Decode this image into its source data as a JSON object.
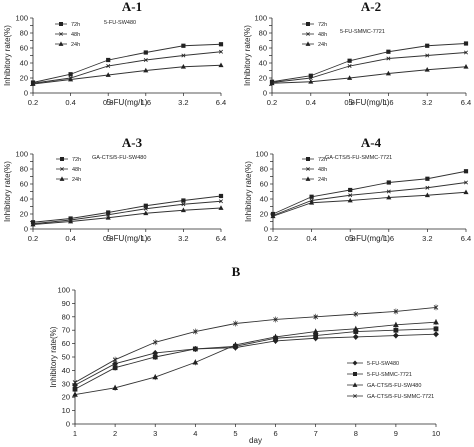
{
  "chart_data": [
    {
      "type": "line",
      "panel": "A-1",
      "annotation": "5-FU-SW480",
      "xlabel": "5-FU(mg/L)",
      "ylabel": "Inhibitory rate(%)",
      "categories": [
        "0.2",
        "0.4",
        "0.8",
        "1.6",
        "3.2",
        "6.4"
      ],
      "ylim": [
        0,
        100
      ],
      "yticks": [
        0,
        10,
        20,
        30,
        40,
        50,
        60,
        70,
        80,
        90,
        100
      ],
      "legend": "top-left",
      "series": [
        {
          "name": "72h",
          "marker": "square",
          "values": [
            14,
            25,
            44,
            54,
            63,
            65
          ]
        },
        {
          "name": "48h",
          "marker": "cross",
          "values": [
            13,
            20,
            36,
            44,
            50,
            55
          ]
        },
        {
          "name": "24h",
          "marker": "triangle",
          "values": [
            12,
            18,
            24,
            30,
            35,
            37
          ]
        }
      ]
    },
    {
      "type": "line",
      "panel": "A-2",
      "annotation": "5-FU-SMMC-7721",
      "xlabel": "5-FU(mg/L)",
      "ylabel": "Inhibitory rate(%)",
      "categories": [
        "0.2",
        "0.4",
        "0.8",
        "1.6",
        "3.2",
        "6.4"
      ],
      "ylim": [
        0,
        100
      ],
      "yticks": [
        0,
        10,
        20,
        30,
        40,
        50,
        60,
        70,
        80,
        90,
        100
      ],
      "legend": "top-left",
      "series": [
        {
          "name": "72h",
          "marker": "square",
          "values": [
            15,
            23,
            43,
            55,
            63,
            66
          ]
        },
        {
          "name": "48h",
          "marker": "cross",
          "values": [
            14,
            20,
            36,
            46,
            50,
            54
          ]
        },
        {
          "name": "24h",
          "marker": "triangle",
          "values": [
            13,
            15,
            20,
            26,
            31,
            35
          ]
        }
      ]
    },
    {
      "type": "line",
      "panel": "A-3",
      "annotation": "GA-CTS/5-FU-SW480",
      "xlabel": "5-FU(mg/L)",
      "ylabel": "Inhibitory rate(%)",
      "categories": [
        "0.2",
        "0.4",
        "0.8",
        "1.6",
        "3.2",
        "6.4"
      ],
      "ylim": [
        0,
        100
      ],
      "yticks": [
        0,
        10,
        20,
        30,
        40,
        50,
        60,
        70,
        80,
        90,
        100
      ],
      "legend": "top-left",
      "series": [
        {
          "name": "72h",
          "marker": "square",
          "values": [
            9,
            14,
            22,
            31,
            38,
            44
          ]
        },
        {
          "name": "48h",
          "marker": "cross",
          "values": [
            7,
            12,
            19,
            27,
            33,
            37
          ]
        },
        {
          "name": "24h",
          "marker": "triangle",
          "values": [
            6,
            10,
            15,
            21,
            25,
            28
          ]
        }
      ]
    },
    {
      "type": "line",
      "panel": "A-4",
      "annotation": "GA-CTS/5-FU-SMMC-7721",
      "xlabel": "5-FU(mg/L)",
      "ylabel": "Inhibitory rate(%)",
      "categories": [
        "0.2",
        "0.4",
        "0.8",
        "1.6",
        "3.2",
        "6.4"
      ],
      "ylim": [
        0,
        100
      ],
      "yticks": [
        0,
        10,
        20,
        30,
        40,
        50,
        60,
        70,
        80,
        90,
        100
      ],
      "legend": "top-left",
      "series": [
        {
          "name": "72h",
          "marker": "square",
          "values": [
            20,
            43,
            52,
            62,
            67,
            77
          ]
        },
        {
          "name": "48h",
          "marker": "cross",
          "values": [
            18,
            38,
            45,
            50,
            55,
            62
          ]
        },
        {
          "name": "24h",
          "marker": "triangle",
          "values": [
            17,
            35,
            38,
            42,
            45,
            49
          ]
        }
      ]
    },
    {
      "type": "line",
      "panel": "B",
      "xlabel": "day",
      "ylabel": "Inhibitory rate(%)",
      "x": [
        1,
        2,
        3,
        4,
        5,
        6,
        7,
        8,
        9,
        10
      ],
      "ylim": [
        0,
        100
      ],
      "yticks": [
        0,
        10,
        20,
        30,
        40,
        50,
        60,
        70,
        80,
        90,
        100
      ],
      "legend": "bottom-right",
      "series": [
        {
          "name": "5-FU-SW480",
          "marker": "diamond",
          "values": [
            29,
            45,
            53,
            56,
            57,
            62,
            64,
            65,
            66,
            67
          ]
        },
        {
          "name": "5-FU-SMMC-7721",
          "marker": "square",
          "values": [
            26,
            42,
            50,
            56,
            58,
            64,
            66,
            69,
            70,
            71
          ]
        },
        {
          "name": "GA-CTS/5-FU-SW480",
          "marker": "triangle",
          "values": [
            22,
            27,
            35,
            46,
            59,
            65,
            69,
            71,
            74,
            76
          ]
        },
        {
          "name": "GA-CTS/5-FU-SMMC-7721",
          "marker": "cross",
          "values": [
            31,
            48,
            61,
            69,
            75,
            78,
            80,
            82,
            84,
            87
          ]
        }
      ]
    }
  ]
}
